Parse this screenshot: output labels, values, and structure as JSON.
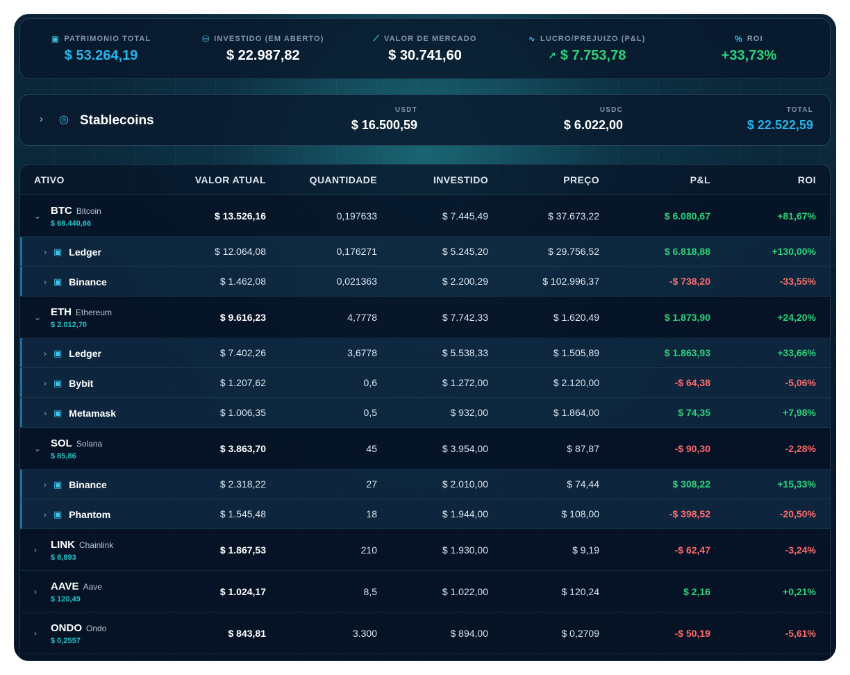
{
  "summary": [
    {
      "label": "PATRIMONIO TOTAL",
      "value": "$ 53.264,19",
      "icon": "wallet-icon",
      "tone": "cyan"
    },
    {
      "label": "INVESTIDO (EM ABERTO)",
      "value": "$ 22.987,82",
      "icon": "coins-icon",
      "tone": "white"
    },
    {
      "label": "VALOR DE MERCADO",
      "value": "$ 30.741,60",
      "icon": "chart-line-icon",
      "tone": "white"
    },
    {
      "label": "LUCRO/PREJUIZO (P&L)",
      "value": "$ 7.753,78",
      "icon": "activity-icon",
      "tone": "green"
    },
    {
      "label": "ROI",
      "value": "+33,73%",
      "icon": "percent-icon",
      "tone": "green"
    }
  ],
  "stablecoins": {
    "title": "Stablecoins",
    "usdt_label": "USDT",
    "usdt_value": "$ 16.500,59",
    "usdc_label": "USDC",
    "usdc_value": "$ 6.022,00",
    "total_label": "TOTAL",
    "total_value": "$ 22.522,59"
  },
  "table": {
    "headers": [
      "ATIVO",
      "VALOR ATUAL",
      "QUANTIDADE",
      "INVESTIDO",
      "PREÇO",
      "P&L",
      "ROI"
    ],
    "assets": [
      {
        "symbol": "BTC",
        "name": "Bitcoin",
        "price": "$ 68.440,66",
        "expanded": true,
        "valor": "$ 13.526,16",
        "qtd": "0,197633",
        "investido": "$ 7.445,49",
        "preco": "$ 37.673,22",
        "pl": "$ 6.080,67",
        "roi": "+81,67%",
        "positive": true,
        "wallets": [
          {
            "name": "Ledger",
            "valor": "$ 12.064,08",
            "qtd": "0,176271",
            "investido": "$ 5.245,20",
            "preco": "$ 29.756,52",
            "pl": "$ 6.818,88",
            "roi": "+130,00%",
            "positive": true
          },
          {
            "name": "Binance",
            "valor": "$ 1.462,08",
            "qtd": "0,021363",
            "investido": "$ 2.200,29",
            "preco": "$ 102.996,37",
            "pl": "-$ 738,20",
            "roi": "-33,55%",
            "positive": false
          }
        ]
      },
      {
        "symbol": "ETH",
        "name": "Ethereum",
        "price": "$ 2.012,70",
        "expanded": true,
        "valor": "$ 9.616,23",
        "qtd": "4,7778",
        "investido": "$ 7.742,33",
        "preco": "$ 1.620,49",
        "pl": "$ 1.873,90",
        "roi": "+24,20%",
        "positive": true,
        "wallets": [
          {
            "name": "Ledger",
            "valor": "$ 7.402,26",
            "qtd": "3,6778",
            "investido": "$ 5.538,33",
            "preco": "$ 1.505,89",
            "pl": "$ 1.863,93",
            "roi": "+33,66%",
            "positive": true
          },
          {
            "name": "Bybit",
            "valor": "$ 1.207,62",
            "qtd": "0,6",
            "investido": "$ 1.272,00",
            "preco": "$ 2.120,00",
            "pl": "-$ 64,38",
            "roi": "-5,06%",
            "positive": false
          },
          {
            "name": "Metamask",
            "valor": "$ 1.006,35",
            "qtd": "0,5",
            "investido": "$ 932,00",
            "preco": "$ 1.864,00",
            "pl": "$ 74,35",
            "roi": "+7,98%",
            "positive": true
          }
        ]
      },
      {
        "symbol": "SOL",
        "name": "Solana",
        "price": "$ 85,86",
        "expanded": true,
        "valor": "$ 3.863,70",
        "qtd": "45",
        "investido": "$ 3.954,00",
        "preco": "$ 87,87",
        "pl": "-$ 90,30",
        "roi": "-2,28%",
        "positive": false,
        "wallets": [
          {
            "name": "Binance",
            "valor": "$ 2.318,22",
            "qtd": "27",
            "investido": "$ 2.010,00",
            "preco": "$ 74,44",
            "pl": "$ 308,22",
            "roi": "+15,33%",
            "positive": true
          },
          {
            "name": "Phantom",
            "valor": "$ 1.545,48",
            "qtd": "18",
            "investido": "$ 1.944,00",
            "preco": "$ 108,00",
            "pl": "-$ 398,52",
            "roi": "-20,50%",
            "positive": false
          }
        ]
      },
      {
        "symbol": "LINK",
        "name": "Chainlink",
        "price": "$ 8,893",
        "expanded": false,
        "valor": "$ 1.867,53",
        "qtd": "210",
        "investido": "$ 1.930,00",
        "preco": "$ 9,19",
        "pl": "-$ 62,47",
        "roi": "-3,24%",
        "positive": false,
        "wallets": []
      },
      {
        "symbol": "AAVE",
        "name": "Aave",
        "price": "$ 120,49",
        "expanded": false,
        "valor": "$ 1.024,17",
        "qtd": "8,5",
        "investido": "$ 1.022,00",
        "preco": "$ 120,24",
        "pl": "$ 2,16",
        "roi": "+0,21%",
        "positive": true,
        "wallets": []
      },
      {
        "symbol": "ONDO",
        "name": "Ondo",
        "price": "$ 0,2557",
        "expanded": false,
        "valor": "$ 843,81",
        "qtd": "3.300",
        "investido": "$ 894,00",
        "preco": "$ 0,2709",
        "pl": "-$ 50,19",
        "roi": "-5,61%",
        "positive": false,
        "wallets": []
      }
    ]
  },
  "colors": {
    "accent": "#27b5ea",
    "positive": "#2fd27a",
    "negative": "#ff6b6b"
  }
}
